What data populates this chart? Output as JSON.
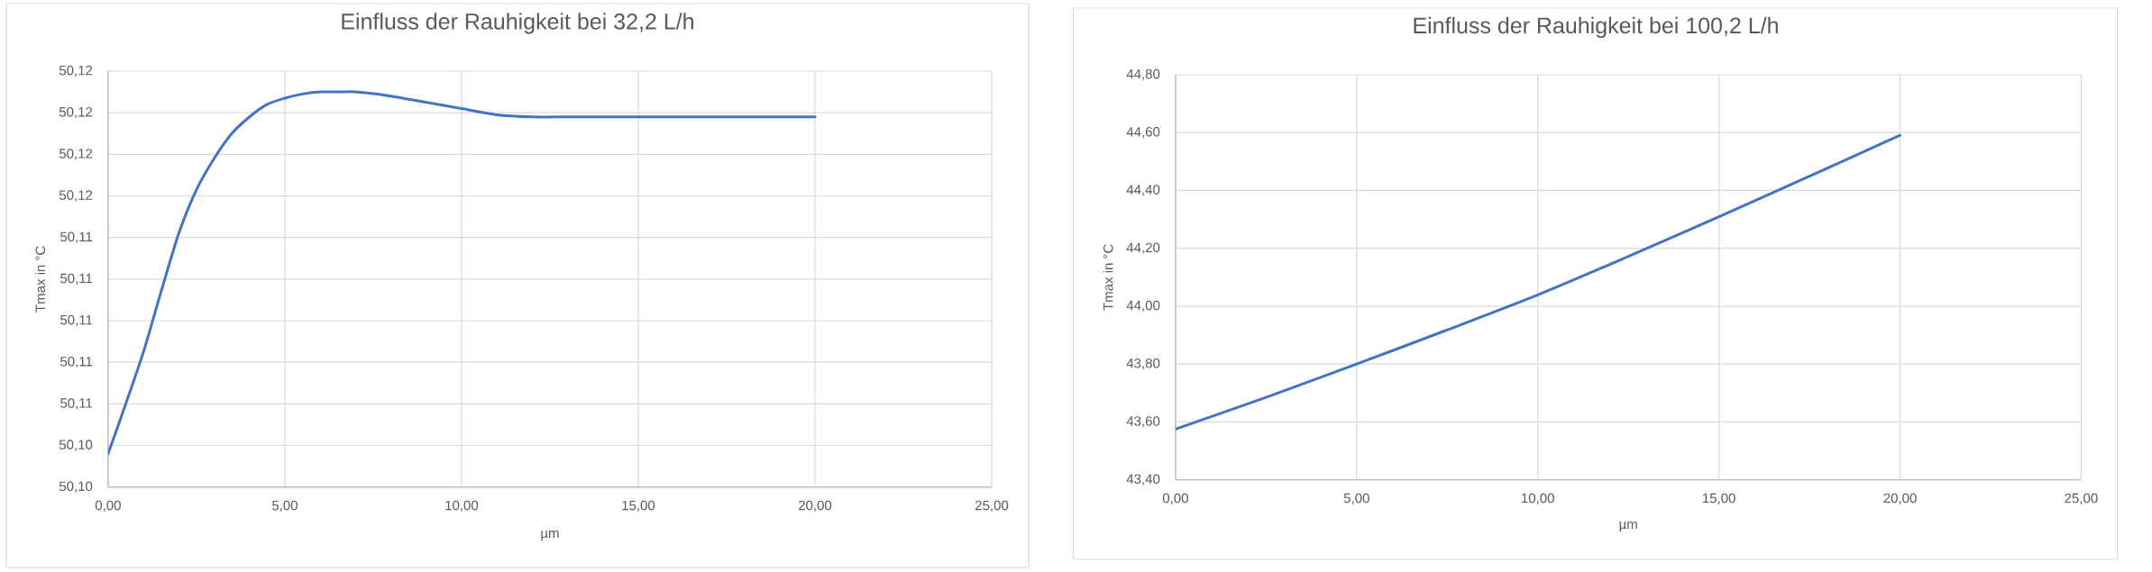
{
  "chart_data": [
    {
      "type": "line",
      "title": "Einfluss der Rauhigkeit bei 32,2 L/h",
      "xlabel": "µm",
      "ylabel": "Tmax in °C",
      "x": [
        0,
        0.5,
        1,
        1.5,
        2,
        2.5,
        3,
        3.5,
        4,
        4.5,
        5,
        5.5,
        6,
        6.5,
        7,
        8,
        9,
        10,
        11,
        12,
        13,
        14,
        15,
        16,
        17,
        18,
        19,
        20
      ],
      "series": [
        {
          "color": "#4472c4",
          "values": [
            50.1036,
            50.106,
            50.1085,
            50.1114,
            50.1142,
            50.1163,
            50.1178,
            50.119,
            50.1198,
            50.1204,
            50.1207,
            50.1209,
            50.121,
            50.121,
            50.121,
            50.1208,
            50.1205,
            50.1202,
            50.1199,
            50.1198,
            50.1198,
            50.1198,
            50.1198,
            50.1198,
            50.1198,
            50.1198,
            50.1198,
            50.1198
          ]
        }
      ],
      "xlim": [
        0,
        25
      ],
      "xticks": [
        {
          "value": 0,
          "label": "0,00"
        },
        {
          "value": 5,
          "label": "5,00"
        },
        {
          "value": 10,
          "label": "10,00"
        },
        {
          "value": 15,
          "label": "15,00"
        },
        {
          "value": 20,
          "label": "20,00"
        },
        {
          "value": 25,
          "label": "25,00"
        }
      ],
      "ylim": [
        50.102,
        50.122
      ],
      "yticks": [
        {
          "value": 50.102,
          "label": "50,10"
        },
        {
          "value": 50.104,
          "label": "50,10"
        },
        {
          "value": 50.106,
          "label": "50,11"
        },
        {
          "value": 50.108,
          "label": "50,11"
        },
        {
          "value": 50.11,
          "label": "50,11"
        },
        {
          "value": 50.112,
          "label": "50,11"
        },
        {
          "value": 50.114,
          "label": "50,11"
        },
        {
          "value": 50.116,
          "label": "50,12"
        },
        {
          "value": 50.118,
          "label": "50,12"
        },
        {
          "value": 50.12,
          "label": "50,12"
        },
        {
          "value": 50.122,
          "label": "50,12"
        }
      ],
      "grid": true
    },
    {
      "type": "line",
      "title": "Einfluss der Rauhigkeit bei 100,2 L/h",
      "xlabel": "µm",
      "ylabel": "Tmax in °C",
      "x": [
        0,
        2.5,
        5,
        7.5,
        10,
        12.5,
        15,
        17.5,
        20
      ],
      "series": [
        {
          "color": "#4472c4",
          "values": [
            43.575,
            43.685,
            43.8,
            43.918,
            44.039,
            44.172,
            44.309,
            44.449,
            44.591
          ]
        }
      ],
      "xlim": [
        0,
        25
      ],
      "xticks": [
        {
          "value": 0,
          "label": "0,00"
        },
        {
          "value": 5,
          "label": "5,00"
        },
        {
          "value": 10,
          "label": "10,00"
        },
        {
          "value": 15,
          "label": "15,00"
        },
        {
          "value": 20,
          "label": "20,00"
        },
        {
          "value": 25,
          "label": "25,00"
        }
      ],
      "ylim": [
        43.4,
        44.8
      ],
      "yticks": [
        {
          "value": 43.4,
          "label": "43,40"
        },
        {
          "value": 43.6,
          "label": "43,60"
        },
        {
          "value": 43.8,
          "label": "43,80"
        },
        {
          "value": 44.0,
          "label": "44,00"
        },
        {
          "value": 44.2,
          "label": "44,20"
        },
        {
          "value": 44.4,
          "label": "44,40"
        },
        {
          "value": 44.6,
          "label": "44,60"
        },
        {
          "value": 44.8,
          "label": "44,80"
        }
      ],
      "grid": true
    }
  ]
}
